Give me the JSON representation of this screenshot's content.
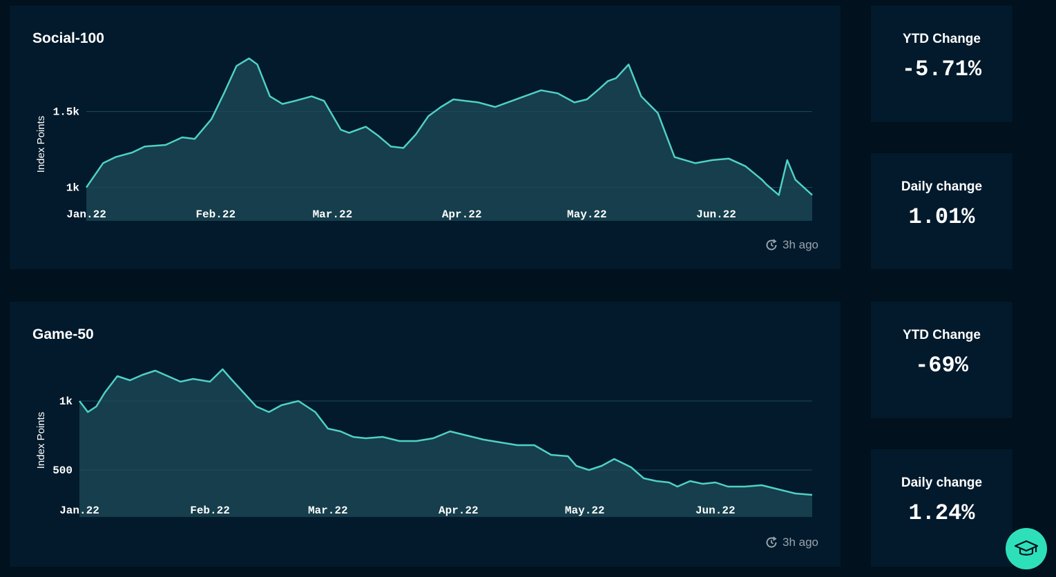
{
  "colors": {
    "background": "#01111d",
    "panel": "#021a2c",
    "line": "#4fd1c5",
    "area": "#163e4c",
    "gridline": "#1d4a5c",
    "accent": "#2ee0b9"
  },
  "panels": [
    {
      "title": "Social-100",
      "updated": "3h ago",
      "updated_icon": "clock-refresh-icon",
      "ytd_label": "YTD Change",
      "ytd_value": "-5.71%",
      "daily_label": "Daily change",
      "daily_value": "1.01%"
    },
    {
      "title": "Game-50",
      "updated": "3h ago",
      "updated_icon": "clock-refresh-icon",
      "ytd_label": "YTD Change",
      "ytd_value": "-69%",
      "daily_label": "Daily change",
      "daily_value": "1.24%"
    }
  ],
  "help_icon": "graduation-cap-icon",
  "chart_data": [
    {
      "type": "area",
      "title": "Social-100",
      "ylabel": "Index Points",
      "xlabel": "",
      "x_tick_labels": [
        "Jan.22",
        "Feb.22",
        "Mar.22",
        "Apr.22",
        "May.22",
        "Jun.22"
      ],
      "y_tick_labels": [
        "1k",
        "1.5k"
      ],
      "y_ticks": [
        1000,
        1500
      ],
      "ylim": [
        780,
        1880
      ],
      "grid": "horizontal",
      "series": [
        {
          "x": [
            "2022-01-01",
            "2022-01-05",
            "2022-01-08",
            "2022-01-12",
            "2022-01-15",
            "2022-01-20",
            "2022-01-24",
            "2022-01-27",
            "2022-01-31",
            "2022-02-03",
            "2022-02-06",
            "2022-02-09",
            "2022-02-11",
            "2022-02-14",
            "2022-02-17",
            "2022-02-20",
            "2022-02-24",
            "2022-02-27",
            "2022-03-03",
            "2022-03-05",
            "2022-03-09",
            "2022-03-12",
            "2022-03-15",
            "2022-03-18",
            "2022-03-21",
            "2022-03-24",
            "2022-03-27",
            "2022-03-30",
            "2022-04-02",
            "2022-04-05",
            "2022-04-09",
            "2022-04-13",
            "2022-04-16",
            "2022-04-20",
            "2022-04-24",
            "2022-04-28",
            "2022-05-01",
            "2022-05-04",
            "2022-05-06",
            "2022-05-08",
            "2022-05-11",
            "2022-05-14",
            "2022-05-18",
            "2022-05-22",
            "2022-05-27",
            "2022-05-31",
            "2022-06-04",
            "2022-06-08",
            "2022-06-12",
            "2022-06-13",
            "2022-06-16",
            "2022-06-18",
            "2022-06-20",
            "2022-06-24"
          ],
          "values": [
            1000,
            1160,
            1200,
            1230,
            1270,
            1280,
            1330,
            1320,
            1450,
            1620,
            1800,
            1850,
            1810,
            1600,
            1550,
            1570,
            1600,
            1570,
            1380,
            1360,
            1400,
            1340,
            1270,
            1260,
            1350,
            1470,
            1530,
            1580,
            1570,
            1560,
            1530,
            1570,
            1600,
            1640,
            1620,
            1560,
            1580,
            1650,
            1700,
            1720,
            1810,
            1600,
            1490,
            1200,
            1160,
            1180,
            1190,
            1140,
            1050,
            1020,
            950,
            1180,
            1050,
            950
          ]
        }
      ]
    },
    {
      "type": "area",
      "title": "Game-50",
      "ylabel": "Index Points",
      "xlabel": "",
      "x_tick_labels": [
        "Jan.22",
        "Feb.22",
        "Mar.22",
        "Apr.22",
        "May.22",
        "Jun.22"
      ],
      "y_tick_labels": [
        "500",
        "1k"
      ],
      "y_ticks": [
        500,
        1000
      ],
      "ylim": [
        160,
        1370
      ],
      "grid": "horizontal",
      "series": [
        {
          "x": [
            "2022-01-01",
            "2022-01-03",
            "2022-01-05",
            "2022-01-07",
            "2022-01-10",
            "2022-01-13",
            "2022-01-16",
            "2022-01-19",
            "2022-01-22",
            "2022-01-25",
            "2022-01-28",
            "2022-02-01",
            "2022-02-04",
            "2022-02-06",
            "2022-02-09",
            "2022-02-12",
            "2022-02-15",
            "2022-02-18",
            "2022-02-22",
            "2022-02-26",
            "2022-03-01",
            "2022-03-04",
            "2022-03-07",
            "2022-03-10",
            "2022-03-14",
            "2022-03-18",
            "2022-03-22",
            "2022-03-26",
            "2022-03-30",
            "2022-04-03",
            "2022-04-07",
            "2022-04-11",
            "2022-04-15",
            "2022-04-19",
            "2022-04-23",
            "2022-04-27",
            "2022-04-29",
            "2022-05-02",
            "2022-05-05",
            "2022-05-08",
            "2022-05-12",
            "2022-05-15",
            "2022-05-18",
            "2022-05-21",
            "2022-05-23",
            "2022-05-26",
            "2022-05-29",
            "2022-06-01",
            "2022-06-04",
            "2022-06-08",
            "2022-06-12",
            "2022-06-16",
            "2022-06-20",
            "2022-06-24"
          ],
          "values": [
            1000,
            920,
            960,
            1060,
            1180,
            1150,
            1190,
            1220,
            1180,
            1140,
            1160,
            1140,
            1230,
            1160,
            1060,
            960,
            920,
            970,
            1000,
            920,
            800,
            780,
            740,
            730,
            740,
            710,
            710,
            730,
            780,
            750,
            720,
            700,
            680,
            680,
            610,
            600,
            530,
            500,
            530,
            580,
            520,
            440,
            420,
            410,
            380,
            420,
            400,
            410,
            380,
            380,
            390,
            360,
            330,
            320
          ]
        }
      ]
    }
  ]
}
